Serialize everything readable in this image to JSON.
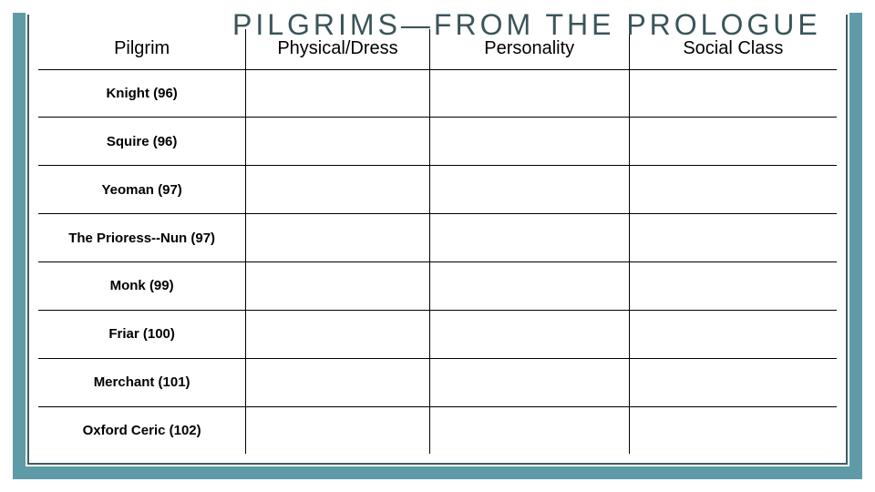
{
  "title": "PILGRIMS—FROM THE PROLOGUE",
  "table": {
    "columns": [
      {
        "label": "Pilgrim",
        "class": "col-pilgrim"
      },
      {
        "label": "Physical/Dress",
        "class": "col-physical"
      },
      {
        "label": "Personality",
        "class": "col-personality"
      },
      {
        "label": "Social Class",
        "class": "col-social"
      }
    ],
    "rows": [
      {
        "pilgrim": "Knight (96)",
        "physical": "",
        "personality": "",
        "social": ""
      },
      {
        "pilgrim": "Squire (96)",
        "physical": "",
        "personality": "",
        "social": ""
      },
      {
        "pilgrim": "Yeoman (97)",
        "physical": "",
        "personality": "",
        "social": ""
      },
      {
        "pilgrim": "The Prioress--Nun (97)",
        "physical": "",
        "personality": "",
        "social": ""
      },
      {
        "pilgrim": "Monk (99)",
        "physical": "",
        "personality": "",
        "social": ""
      },
      {
        "pilgrim": "Friar (100)",
        "physical": "",
        "personality": "",
        "social": ""
      },
      {
        "pilgrim": "Merchant (101)",
        "physical": "",
        "personality": "",
        "social": ""
      },
      {
        "pilgrim": "Oxford Ceric (102)",
        "physical": "",
        "personality": "",
        "social": ""
      }
    ]
  },
  "colors": {
    "frame_outer": "#5f9ba6",
    "frame_inner": "#3f5d61",
    "title_color": "#3a5559",
    "border_color": "#000000",
    "background": "#ffffff"
  },
  "typography": {
    "title_fontsize": 32,
    "title_letter_spacing": 4,
    "header_fontsize": 20,
    "cell_fontsize": 15,
    "cell_fontweight": "bold"
  }
}
